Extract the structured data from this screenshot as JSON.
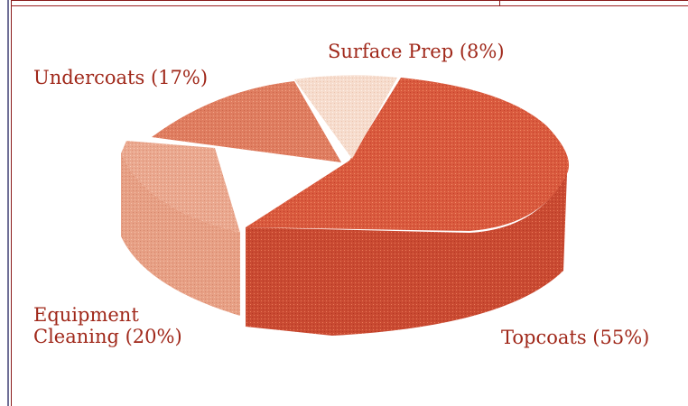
{
  "chart_data": {
    "type": "pie",
    "slices": [
      {
        "label": "Topcoats (55%)",
        "value": 55,
        "color": "#d95a3e"
      },
      {
        "label": "Equipment Cleaning (20%)",
        "value": 20,
        "color": "#e9a58d"
      },
      {
        "label": "Undercoats (17%)",
        "value": 17,
        "color": "#de7c5f"
      },
      {
        "label": "Surface Prep (8%)",
        "value": 8,
        "color": "#f5d8c8"
      }
    ],
    "style": "3d-exploded"
  },
  "labels": {
    "surface_prep": "Surface Prep (8%)",
    "undercoats": "Undercoats (17%)",
    "equipment_line1": "Equipment",
    "equipment_line2": "Cleaning (20%)",
    "topcoats": "Topcoats (55%)"
  }
}
